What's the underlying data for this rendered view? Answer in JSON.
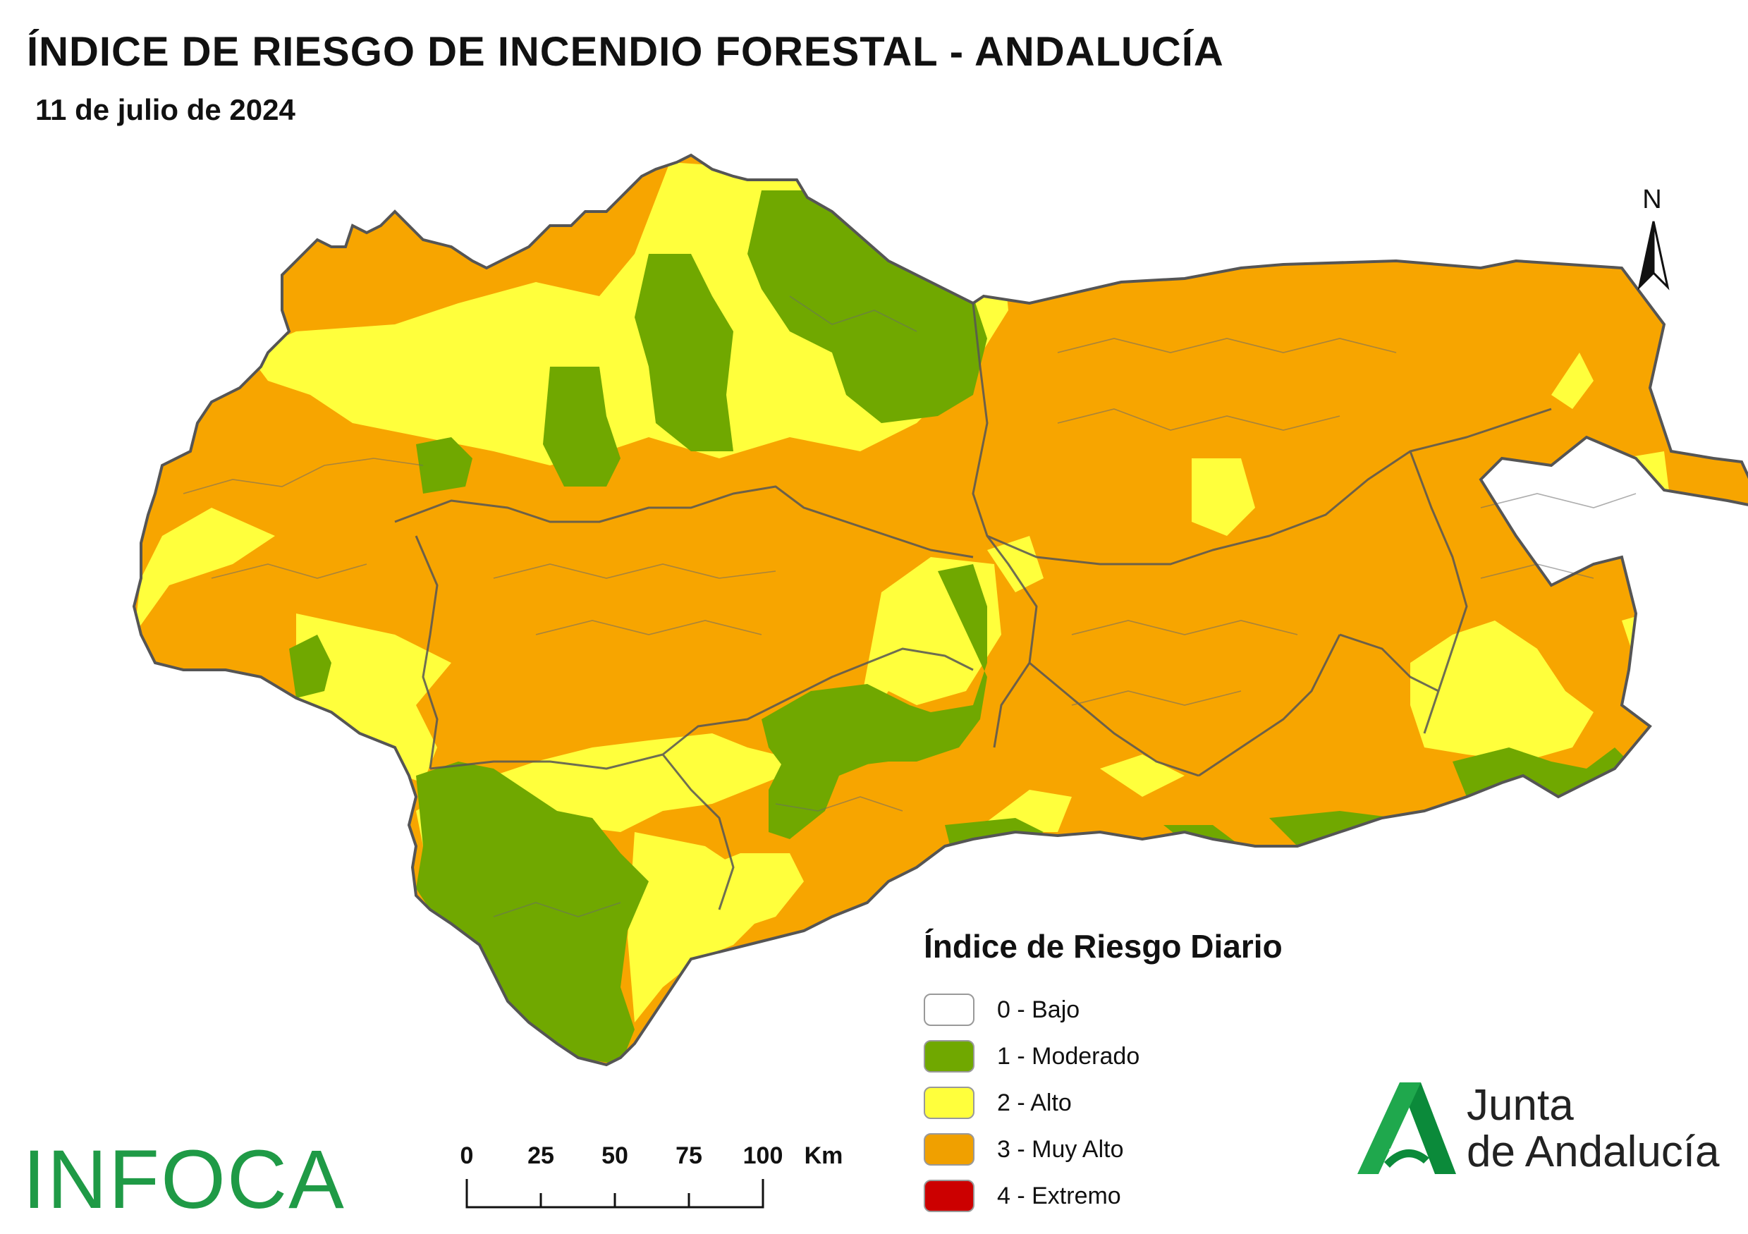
{
  "title": "ÍNDICE DE RIESGO DE INCENDIO FORESTAL - ANDALUCÍA",
  "date": "11 de julio de 2024",
  "north_label": "N",
  "legend": {
    "title": "Índice de Riesgo Diario",
    "items": [
      {
        "label": "0 - Bajo",
        "color": "#ffffff"
      },
      {
        "label": "1 - Moderado",
        "color": "#70a800"
      },
      {
        "label": "2 - Alto",
        "color": "#ffff3c"
      },
      {
        "label": "3 - Muy Alto",
        "color": "#f0a000"
      },
      {
        "label": "4 - Extremo",
        "color": "#cc0000"
      }
    ]
  },
  "scale_bar": {
    "ticks": [
      "0",
      "25",
      "50",
      "75",
      "100"
    ],
    "unit": "Km"
  },
  "logos": {
    "infoca": "INFOCA",
    "junta_line1": "Junta",
    "junta_line2": "de Andalucía"
  },
  "colors": {
    "moderado": "#70a800",
    "alto": "#ffff3c",
    "muy_alto": "#f7a500",
    "border": "#555555",
    "infoca_green": "#1f9a46"
  }
}
